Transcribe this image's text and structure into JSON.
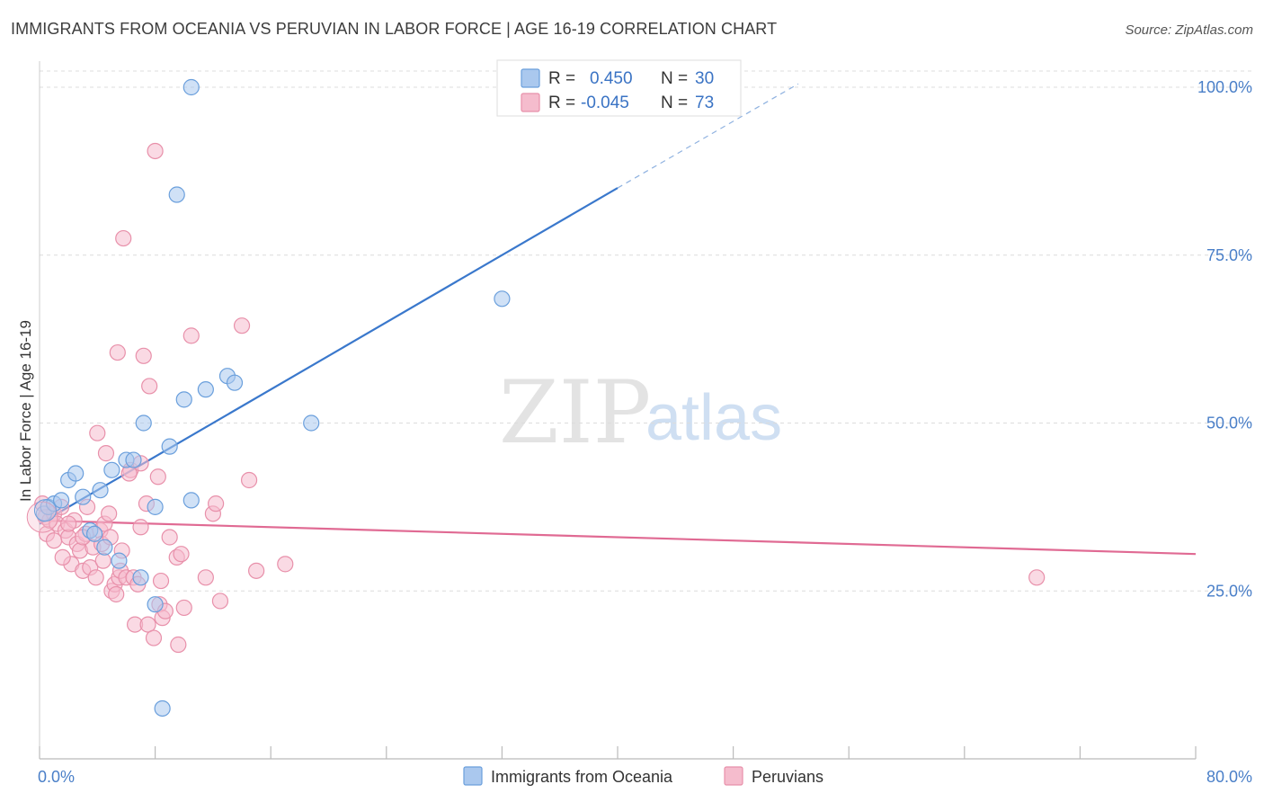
{
  "header": {
    "title": "IMMIGRANTS FROM OCEANIA VS PERUVIAN IN LABOR FORCE | AGE 16-19 CORRELATION CHART",
    "source": "Source: ZipAtlas.com"
  },
  "watermark": {
    "zip": "ZIP",
    "atlas": "atlas"
  },
  "chart_data": {
    "type": "scatter",
    "title": "IMMIGRANTS FROM OCEANIA VS PERUVIAN IN LABOR FORCE | AGE 16-19 CORRELATION CHART",
    "xlabel": "",
    "ylabel": "In Labor Force | Age 16-19",
    "xlim": [
      0,
      80
    ],
    "ylim": [
      0,
      102
    ],
    "x_tick_labels": {
      "left": "0.0%",
      "right": "80.0%"
    },
    "y_ticks": [
      {
        "value": 25,
        "label": "25.0%"
      },
      {
        "value": 50,
        "label": "50.0%"
      },
      {
        "value": 75,
        "label": "75.0%"
      },
      {
        "value": 100,
        "label": "100.0%"
      }
    ],
    "grid": true,
    "legend_position": "top-center",
    "legend": [
      {
        "r_label": "R =",
        "r_value": "0.450",
        "n_label": "N =",
        "n_value": "30"
      },
      {
        "r_label": "R =",
        "r_value": "-0.045",
        "n_label": "N =",
        "n_value": "73"
      }
    ],
    "series": [
      {
        "name": "Immigrants from Oceania",
        "color": "#6a9fdc",
        "fill": "#aac8ee",
        "line_color": "#3a78cc",
        "trend": {
          "x0": 0,
          "y0": 35,
          "x1": 40,
          "y1": 85,
          "dash_to_x": 52.5,
          "dash_to_y": 100.5
        },
        "points": [
          [
            0.3,
            36.5
          ],
          [
            0.6,
            37.5
          ],
          [
            1.0,
            38.0
          ],
          [
            1.5,
            38.5
          ],
          [
            2.0,
            41.5
          ],
          [
            2.5,
            42.5
          ],
          [
            3.0,
            39.0
          ],
          [
            3.5,
            34.0
          ],
          [
            3.8,
            33.5
          ],
          [
            4.2,
            40.0
          ],
          [
            4.5,
            31.5
          ],
          [
            5.0,
            43.0
          ],
          [
            5.5,
            29.5
          ],
          [
            6.0,
            44.5
          ],
          [
            6.5,
            44.5
          ],
          [
            7.0,
            27.0
          ],
          [
            7.2,
            50.0
          ],
          [
            8.0,
            37.5
          ],
          [
            8.0,
            23.0
          ],
          [
            8.5,
            7.5
          ],
          [
            9.0,
            46.5
          ],
          [
            9.5,
            84.0
          ],
          [
            10.0,
            53.5
          ],
          [
            10.5,
            38.5
          ],
          [
            10.5,
            100.0
          ],
          [
            11.5,
            55.0
          ],
          [
            13.0,
            57.0
          ],
          [
            13.5,
            56.0
          ],
          [
            18.8,
            50.0
          ],
          [
            32.0,
            68.5
          ]
        ]
      },
      {
        "name": "Peruvians",
        "color": "#e890aa",
        "fill": "#f5bccd",
        "line_color": "#e06a93",
        "trend": {
          "x0": 0,
          "y0": 35.5,
          "x1": 80,
          "y1": 30.5
        },
        "points": [
          [
            0.2,
            38.0
          ],
          [
            0.4,
            36.0
          ],
          [
            0.5,
            33.5
          ],
          [
            0.7,
            35.5
          ],
          [
            1.0,
            36.5
          ],
          [
            1.2,
            35.0
          ],
          [
            1.5,
            37.5
          ],
          [
            1.8,
            34.0
          ],
          [
            2.0,
            33.0
          ],
          [
            2.2,
            29.0
          ],
          [
            2.4,
            35.5
          ],
          [
            2.6,
            32.0
          ],
          [
            2.8,
            31.0
          ],
          [
            3.0,
            28.0
          ],
          [
            3.2,
            33.5
          ],
          [
            3.3,
            37.5
          ],
          [
            3.5,
            28.5
          ],
          [
            3.7,
            31.5
          ],
          [
            3.9,
            27.0
          ],
          [
            4.0,
            48.5
          ],
          [
            4.2,
            34.0
          ],
          [
            4.3,
            32.0
          ],
          [
            4.5,
            35.0
          ],
          [
            4.6,
            45.5
          ],
          [
            4.8,
            36.5
          ],
          [
            4.9,
            33.0
          ],
          [
            5.0,
            25.0
          ],
          [
            5.2,
            26.0
          ],
          [
            5.4,
            60.5
          ],
          [
            5.5,
            27.0
          ],
          [
            5.6,
            28.0
          ],
          [
            5.7,
            31.0
          ],
          [
            5.8,
            77.5
          ],
          [
            6.0,
            27.0
          ],
          [
            6.3,
            43.0
          ],
          [
            6.5,
            27.0
          ],
          [
            6.6,
            20.0
          ],
          [
            6.8,
            26.0
          ],
          [
            7.0,
            44.0
          ],
          [
            7.0,
            34.5
          ],
          [
            7.2,
            60.0
          ],
          [
            7.4,
            38.0
          ],
          [
            7.5,
            20.0
          ],
          [
            7.6,
            55.5
          ],
          [
            7.9,
            18.0
          ],
          [
            8.0,
            90.5
          ],
          [
            8.2,
            42.0
          ],
          [
            8.3,
            23.0
          ],
          [
            8.4,
            26.5
          ],
          [
            8.5,
            21.0
          ],
          [
            8.7,
            22.0
          ],
          [
            9.5,
            30.0
          ],
          [
            9.6,
            17.0
          ],
          [
            9.8,
            30.5
          ],
          [
            10.0,
            22.5
          ],
          [
            10.5,
            63.0
          ],
          [
            11.5,
            27.0
          ],
          [
            12.0,
            36.5
          ],
          [
            12.2,
            38.0
          ],
          [
            12.5,
            23.5
          ],
          [
            14.0,
            64.5
          ],
          [
            14.5,
            41.5
          ],
          [
            15.0,
            28.0
          ],
          [
            17.0,
            29.0
          ],
          [
            3.0,
            33.0
          ],
          [
            2.0,
            35.0
          ],
          [
            1.0,
            32.5
          ],
          [
            1.6,
            30.0
          ],
          [
            6.2,
            42.5
          ],
          [
            9.0,
            33.0
          ],
          [
            4.4,
            29.5
          ],
          [
            5.3,
            24.5
          ],
          [
            69.0,
            27.0
          ]
        ]
      }
    ]
  }
}
